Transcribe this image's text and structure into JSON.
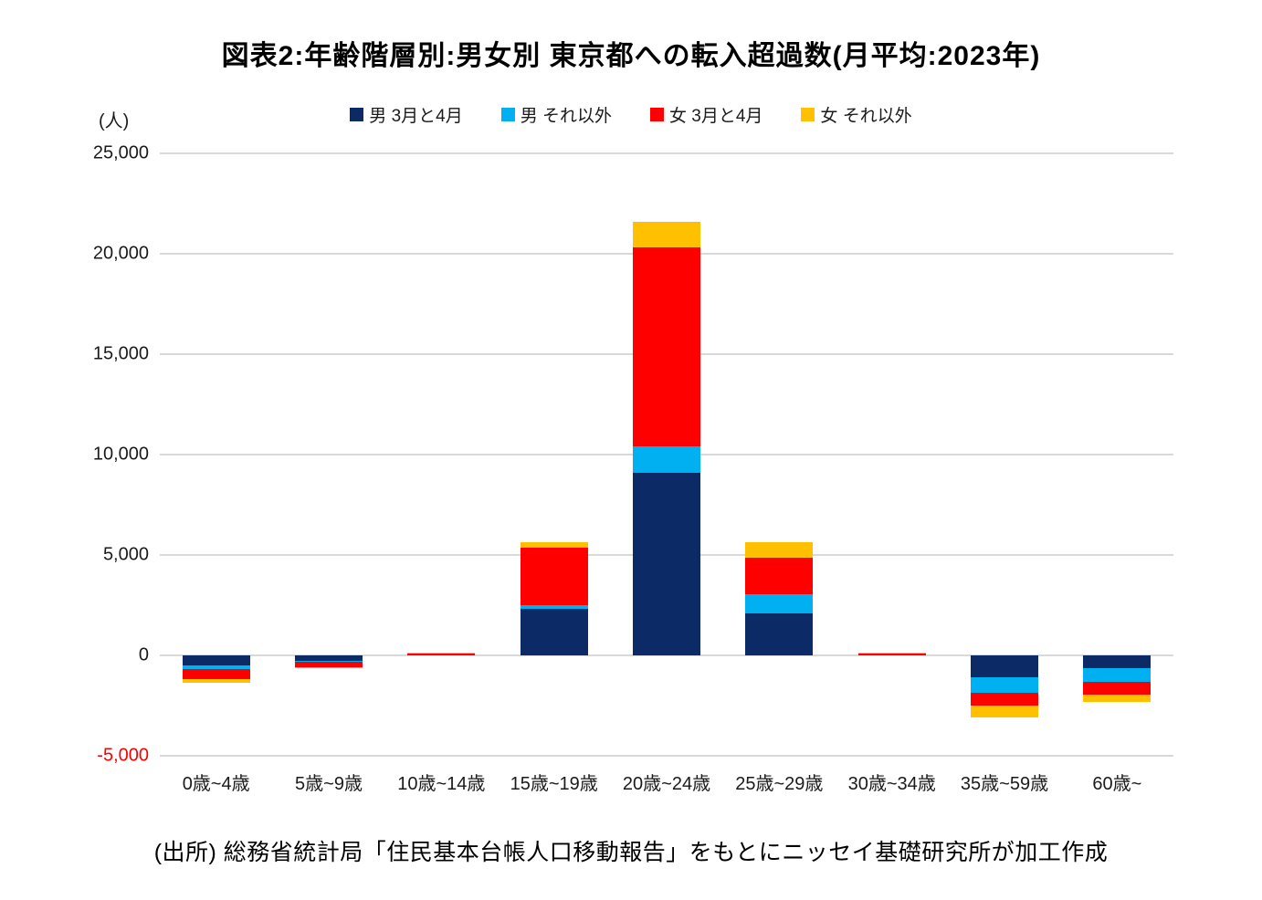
{
  "title": "図表2:年齢階層別:男女別 東京都への転入超過数(月平均:2023年)",
  "unit_label": "(人)",
  "source": "(出所) 総務省統計局「住民基本台帳人口移動報告」をもとにニッセイ基礎研究所が加工作成",
  "chart_data": {
    "type": "bar",
    "stacked": true,
    "title": "図表2:年齢階層別:男女別 東京都への転入超過数(月平均:2023年)",
    "ylabel": "(人)",
    "ylim": [
      -5000,
      25000
    ],
    "ytick_interval": 5000,
    "yticks": [
      {
        "value": 25000,
        "label": "25,000",
        "color": "#1a1a1a"
      },
      {
        "value": 20000,
        "label": "20,000",
        "color": "#1a1a1a"
      },
      {
        "value": 15000,
        "label": "15,000",
        "color": "#1a1a1a"
      },
      {
        "value": 10000,
        "label": "10,000",
        "color": "#1a1a1a"
      },
      {
        "value": 5000,
        "label": "5,000",
        "color": "#1a1a1a"
      },
      {
        "value": 0,
        "label": "0",
        "color": "#1a1a1a"
      },
      {
        "value": -5000,
        "label": "-5,000",
        "color": "#ff0000"
      }
    ],
    "grid": true,
    "gridline_color": "#d9d9d9",
    "legend_position": "top",
    "categories": [
      "0歳~4歳",
      "5歳~9歳",
      "10歳~14歳",
      "15歳~19歳",
      "20歳~24歳",
      "25歳~29歳",
      "30歳~34歳",
      "35歳~59歳",
      "60歳~"
    ],
    "series": [
      {
        "name": "男 3月と4月",
        "color": "#0b2a66",
        "values": [
          -480,
          -280,
          0,
          2300,
          9100,
          2100,
          0,
          -1100,
          -650
        ]
      },
      {
        "name": "男 それ以外",
        "color": "#00b0f0",
        "values": [
          -210,
          -30,
          0,
          200,
          1300,
          950,
          0,
          -780,
          -660
        ]
      },
      {
        "name": "女 3月と4月",
        "color": "#ff0000",
        "values": [
          -500,
          -260,
          100,
          2880,
          9900,
          1800,
          70,
          -640,
          -640
        ]
      },
      {
        "name": "女 それ以外",
        "color": "#ffc000",
        "values": [
          -170,
          -80,
          50,
          250,
          1300,
          800,
          80,
          -560,
          -360
        ]
      }
    ]
  }
}
